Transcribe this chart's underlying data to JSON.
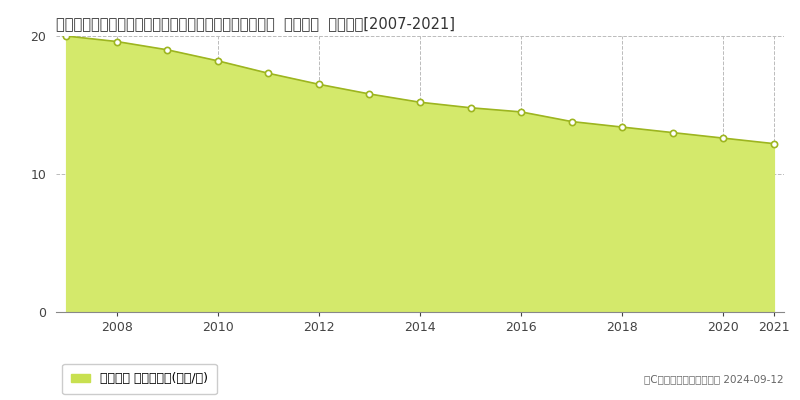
{
  "title": "岐阜県不破郡関ケ原町大字関ケ原字宝有地５７７番１外  地価公示  地価推移[2007-2021]",
  "years": [
    2007,
    2008,
    2009,
    2010,
    2011,
    2012,
    2013,
    2014,
    2015,
    2016,
    2017,
    2018,
    2019,
    2020,
    2021
  ],
  "values": [
    20.0,
    19.6,
    19.0,
    18.2,
    17.3,
    16.5,
    15.8,
    15.2,
    14.8,
    14.5,
    13.8,
    13.4,
    13.0,
    12.6,
    12.2
  ],
  "fill_color": "#d4e96b",
  "line_color": "#9db520",
  "marker_color": "#ffffff",
  "marker_edge_color": "#9db520",
  "grid_color": "#bbbbbb",
  "background_color": "#ffffff",
  "ylim": [
    0,
    20
  ],
  "yticks": [
    0,
    10,
    20
  ],
  "xticks": [
    2008,
    2010,
    2012,
    2014,
    2016,
    2018,
    2020,
    2021
  ],
  "legend_label": "地価公示 平均坪単価(万円/坪)",
  "legend_color": "#c8e050",
  "copyright_text": "（C）土地価格ドットコム 2024-09-12",
  "title_fontsize": 10.5,
  "axis_fontsize": 9,
  "legend_fontsize": 9
}
